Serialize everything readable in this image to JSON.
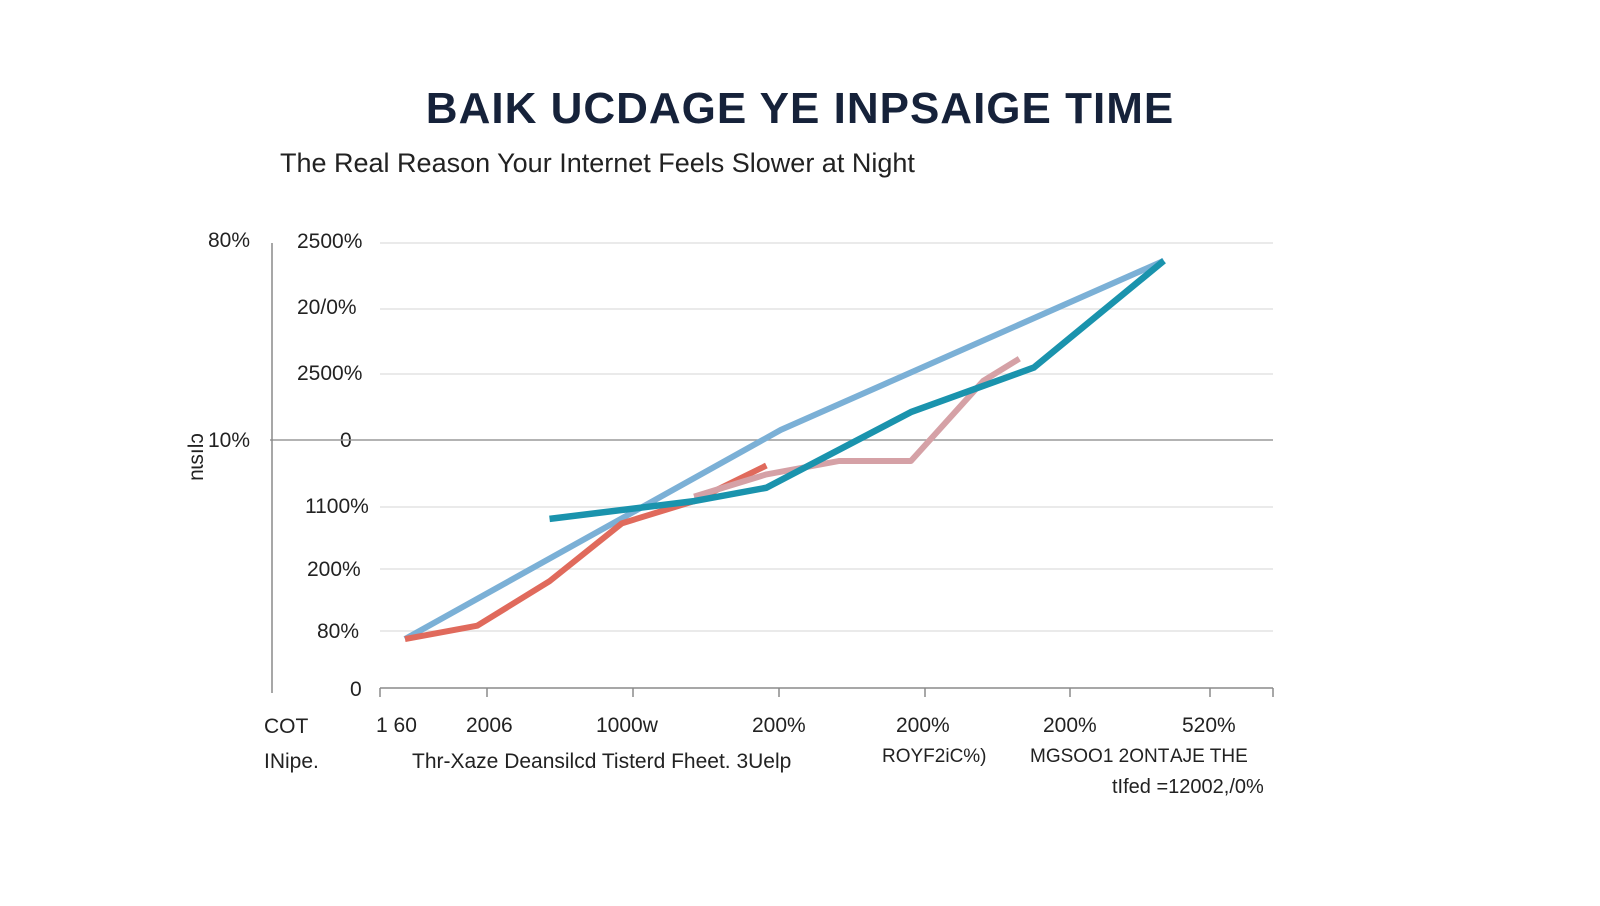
{
  "title": "BAIK UCDAGE YE INPSAIGE TIME",
  "subtitle": "The Real Reason Your Internet Feels Slower at Night",
  "y_axis_label": "nɩsılɔ",
  "outer_y_ticks": [
    "80%",
    "10%"
  ],
  "y_ticks": [
    "2500%",
    "20/0%",
    "2500%",
    "0",
    "1100%",
    "200%",
    "80%",
    "0"
  ],
  "x_ticks": [
    "1 60",
    "2006",
    "1000w",
    "200%",
    "200%",
    "200%",
    "520%"
  ],
  "left_labels": [
    "COT",
    "INipe."
  ],
  "bottom_labels": {
    "caption": "Thr-Xaze Deansilcd Tisterd Fheet. 3Uelp",
    "label_a": "ROYF2iC%)",
    "label_b": "MGSOO1 2ONT",
    "label_c": "AJE THE",
    "footnote": "tIfed =12002,/0%"
  },
  "chart_data": {
    "type": "line",
    "title": "BAIK UCDAGE YE INPSAIGE TIME",
    "subtitle": "The Real Reason Your Internet Feels Slower at Night",
    "x": [
      0,
      1,
      2,
      3,
      4,
      5,
      6,
      7,
      8,
      9,
      10,
      11
    ],
    "xlim": [
      0,
      11
    ],
    "ylim": [
      0,
      100
    ],
    "grid": true,
    "series": [
      {
        "color": "#7bb0d6",
        "points": [
          [
            0,
            11
          ],
          [
            5.2,
            58
          ],
          [
            10.5,
            96
          ]
        ]
      },
      {
        "color": "#e06a5c",
        "points": [
          [
            0,
            11
          ],
          [
            1,
            14
          ],
          [
            2,
            24
          ],
          [
            3,
            37
          ],
          [
            4,
            42
          ],
          [
            5,
            50
          ]
        ]
      },
      {
        "color": "#d5a1a6",
        "points": [
          [
            4,
            43
          ],
          [
            5,
            48
          ],
          [
            6,
            51
          ],
          [
            7,
            51
          ],
          [
            8,
            69
          ],
          [
            8.5,
            74
          ]
        ]
      },
      {
        "color": "#1a93ad",
        "points": [
          [
            2,
            38
          ],
          [
            4,
            42
          ],
          [
            5,
            45
          ],
          [
            7,
            62
          ],
          [
            8.7,
            72
          ],
          [
            10.5,
            96
          ]
        ]
      }
    ]
  }
}
